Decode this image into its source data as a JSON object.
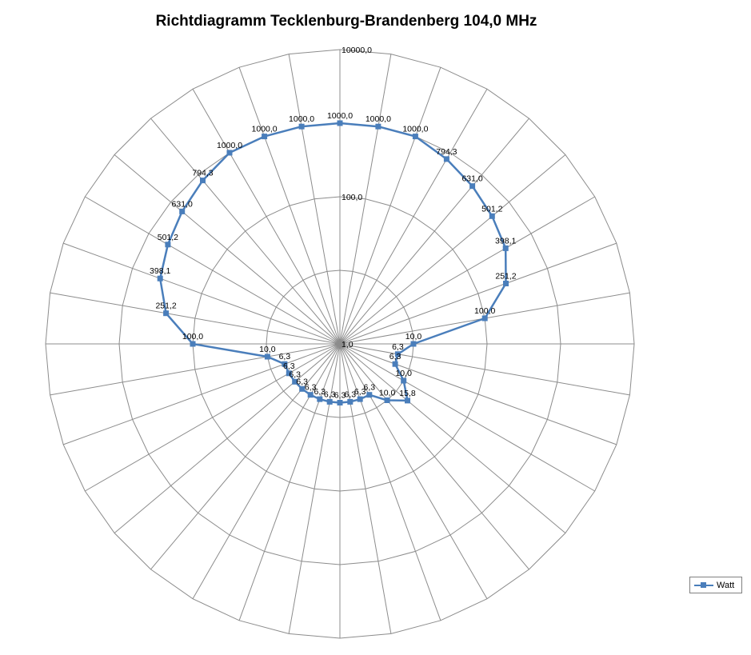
{
  "chart_data": {
    "type": "radar",
    "title": "Richtdiagramm Tecklenburg-Brandenberg 104,0 MHz",
    "scale": "log",
    "rlim": [
      1,
      10000
    ],
    "ticks": [
      {
        "value": 1,
        "label": "1,0"
      },
      {
        "value": 100,
        "label": "100,0"
      },
      {
        "value": 10000,
        "label": "10000,0"
      }
    ],
    "grid": true,
    "legend_position": "bottom-right",
    "series": [
      {
        "name": "Watt",
        "color": "#4a7ebb",
        "values": [
          1000,
          1000,
          1000,
          794.3,
          631,
          501.2,
          398.1,
          251.2,
          100,
          10,
          6.3,
          6.3,
          10,
          15.8,
          10,
          6.3,
          6.3,
          6.3,
          6.3,
          6.3,
          6.3,
          6.3,
          6.3,
          6.3,
          6.3,
          6.3,
          10,
          100,
          251.2,
          398.1,
          501.2,
          631,
          794.3,
          1000,
          1000,
          1000
        ],
        "labels": [
          "1000,0",
          "1000,0",
          "1000,0",
          "794,3",
          "631,0",
          "501,2",
          "398,1",
          "251,2",
          "100,0",
          "10,0",
          "6,3",
          "6,3",
          "10,0",
          "15,8",
          "10,0",
          "6,3",
          "6,3",
          "6,3",
          "6,3",
          "6,3",
          "6,3",
          "6,3",
          "6,3",
          "6,3",
          "6,3",
          "6,3",
          "10,0",
          "100,0",
          "251,2",
          "398,1",
          "501,2",
          "631,0",
          "794,3",
          "1000,0",
          "1000,0",
          "1000,0"
        ]
      }
    ]
  },
  "legend": {
    "label": "Watt"
  }
}
